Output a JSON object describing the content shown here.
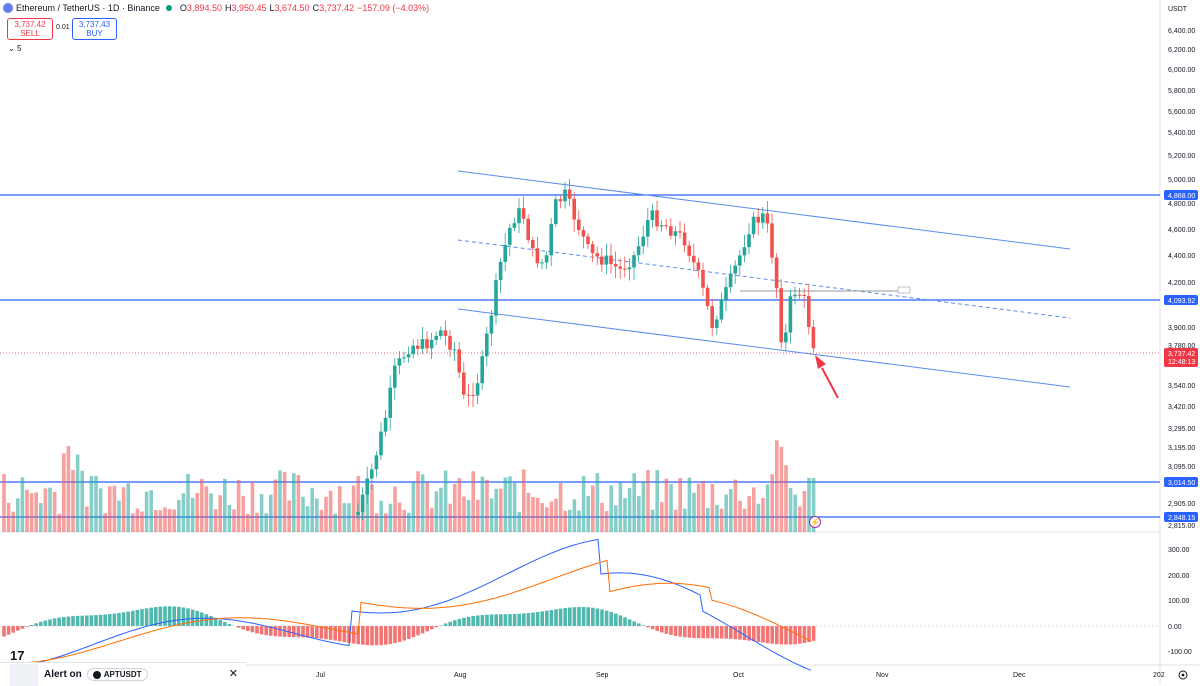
{
  "header": {
    "symbol": "Ethereum / TetherUS · 1D · Binance",
    "open_label": "O",
    "open": "3,894.50",
    "high_label": "H",
    "high": "3,950.45",
    "low_label": "L",
    "low": "3,674.50",
    "close_label": "C",
    "close": "3,737.42",
    "change": "−157.09 (−4.03%)",
    "sell_price": "3,737.42",
    "sell_label": "SELL",
    "spread": "0.01",
    "buy_price": "3,737.43",
    "buy_label": "BUY",
    "indicator_count": "5"
  },
  "axis": {
    "currency": "USDT",
    "price_ticks": [
      "6,400.00",
      "6,200.00",
      "6,000.00",
      "5,800.00",
      "5,600.00",
      "5,400.00",
      "5,200.00",
      "5,000.00",
      "4,800.00",
      "4,600.00",
      "4,400.00",
      "4,200.00",
      "3,900.00",
      "3,780.00",
      "3,540.00",
      "3,420.00",
      "3,295.00",
      "3,195.00",
      "3,095.00",
      "2,905.00",
      "2,815.00"
    ],
    "level_labels": [
      "4,868.00",
      "4,093.92",
      "3,014.50",
      "2,848.15"
    ],
    "current_price": "3,737.42",
    "countdown": "12:48:13",
    "macd_ticks": [
      "300.00",
      "200.00",
      "100.00",
      "0.00",
      "-100.00"
    ],
    "time_labels": [
      "Jul",
      "Aug",
      "Sep",
      "Oct",
      "Nov",
      "Dec",
      "202"
    ]
  },
  "alert": {
    "prefix": "Alert on",
    "symbol": "APTUSDT"
  },
  "colors": {
    "up": "#26a69a",
    "down": "#ef5350",
    "level": "#2962ff",
    "channel": "#5b8def",
    "macd": "#2962ff",
    "signal": "#ff6d00"
  }
}
